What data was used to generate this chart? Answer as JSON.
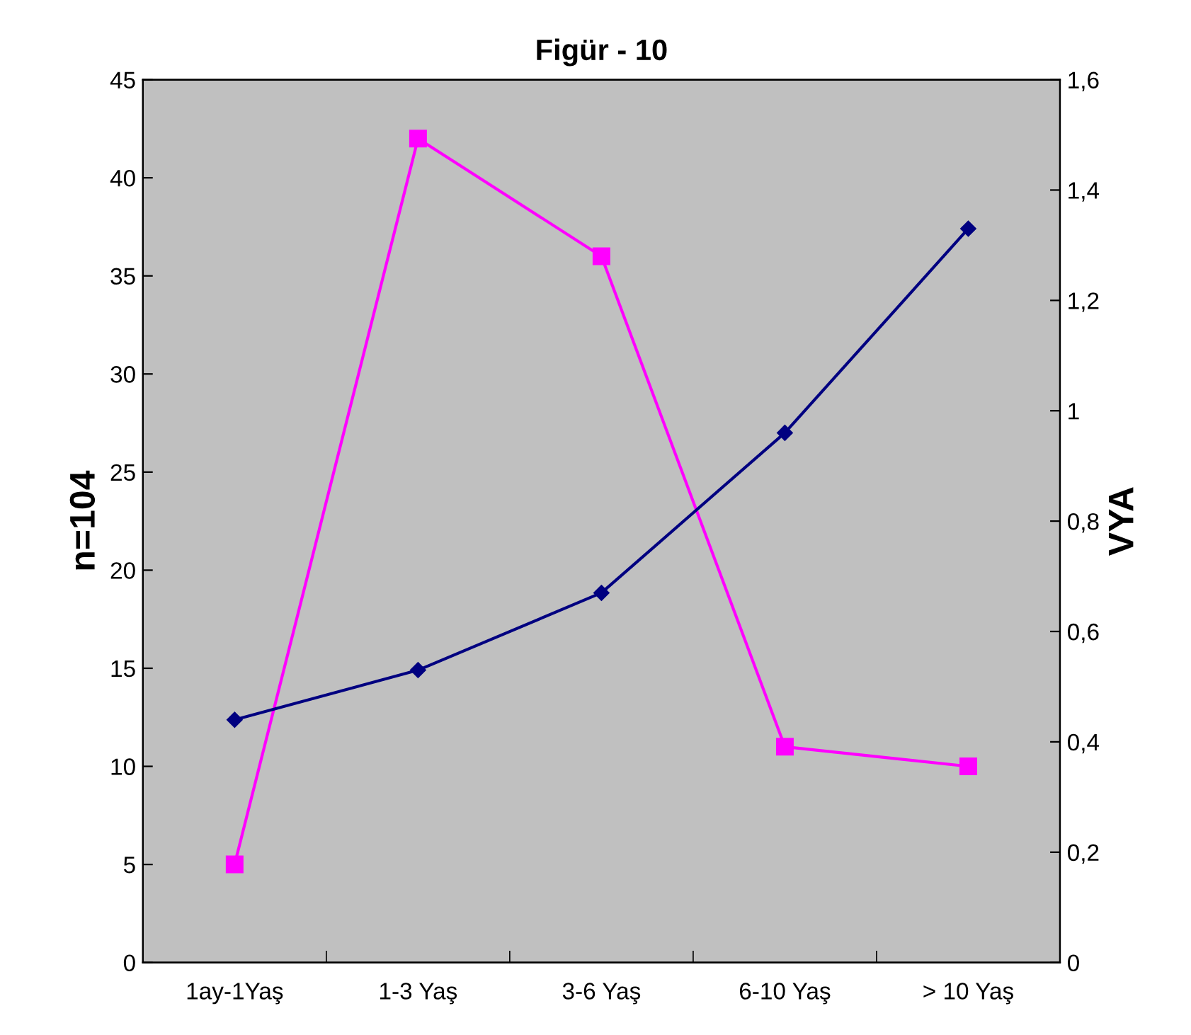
{
  "chart_data": {
    "type": "line",
    "title": "Figür - 10",
    "ylabel": "n=104",
    "y2label": "VYA",
    "categories": [
      "1ay-1Yaş",
      "1-3 Yaş",
      "3-6 Yaş",
      "6-10 Yaş",
      "> 10 Yaş"
    ],
    "series": [
      {
        "color": "#ff00ff",
        "values": [
          5,
          42,
          36,
          11,
          10
        ],
        "marker": "square"
      },
      {
        "color": "#000080",
        "values": [
          0.44,
          0.53,
          0.67,
          0.96,
          1.33
        ],
        "marker": "diamond",
        "axis": "y2"
      }
    ],
    "ylim": [
      0,
      45
    ],
    "yticks": [
      0,
      5,
      10,
      15,
      20,
      25,
      30,
      35,
      40,
      45
    ],
    "y2lim": [
      0,
      1.6
    ],
    "y2ticks": [
      0,
      {
        "value": 0.2,
        "label": "0,2"
      },
      {
        "value": 0.4,
        "label": "0,4"
      },
      {
        "value": 0.6,
        "label": "0,6"
      },
      {
        "value": 0.8,
        "label": "0,8"
      },
      1,
      {
        "value": 1.2,
        "label": "1,2"
      },
      {
        "value": 1.4,
        "label": "1,4"
      },
      {
        "value": 1.6,
        "label": "1,6"
      }
    ],
    "grid": false
  }
}
